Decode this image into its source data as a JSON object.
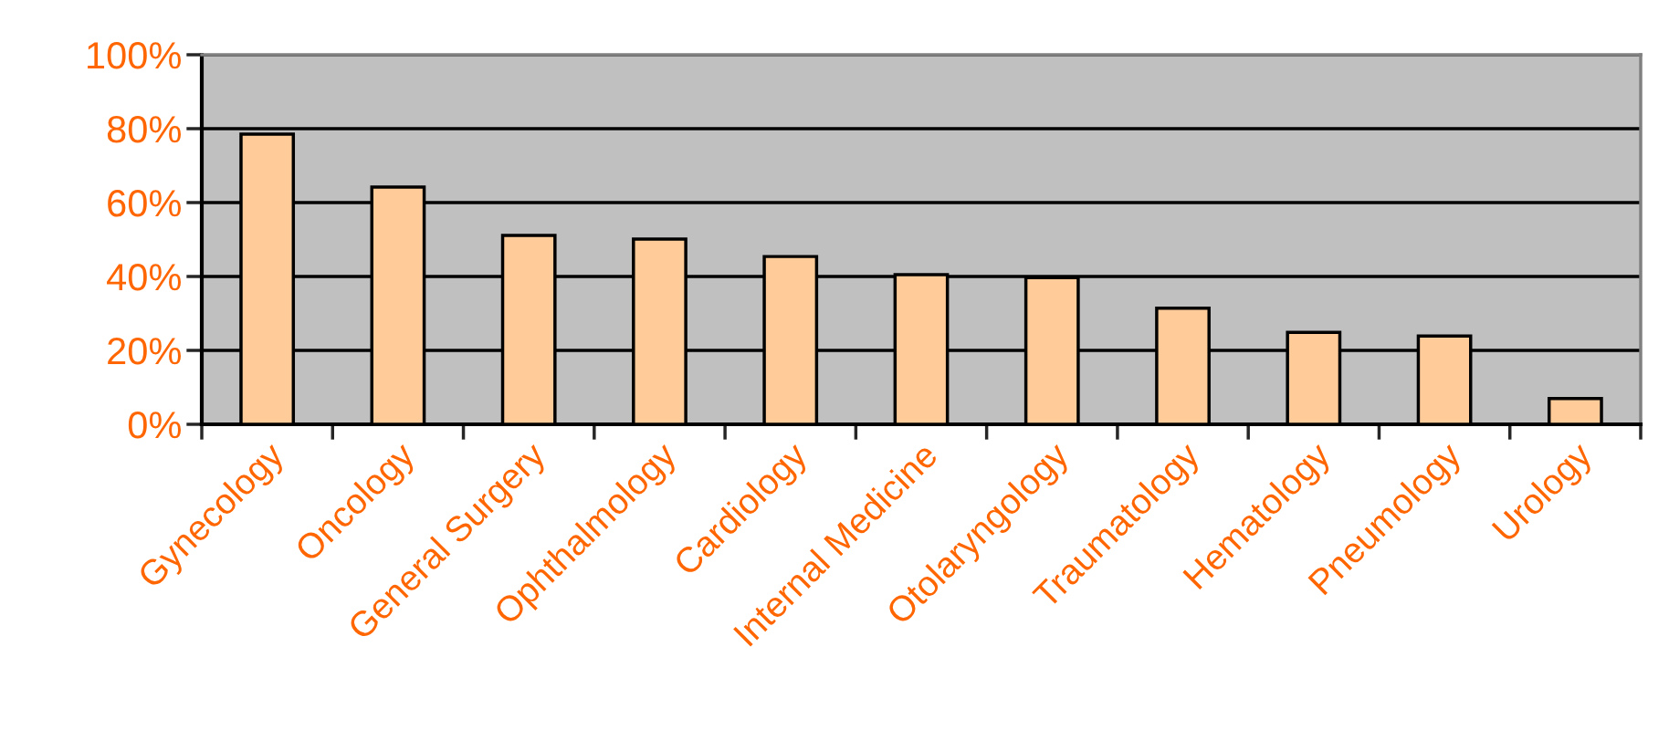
{
  "chart_data": {
    "type": "bar",
    "categories": [
      "Gynecology",
      "Oncology",
      "General Surgery",
      "Ophthalmology",
      "Cardiology",
      "Internal Medicine",
      "Otolaryngology",
      "Traumatology",
      "Hematology",
      "Pneumology",
      "Urology"
    ],
    "values": [
      78.5,
      64.2,
      51.1,
      50.1,
      45.4,
      40.5,
      39.7,
      31.4,
      24.9,
      23.9,
      7.0
    ],
    "color": "#ffcc99",
    "ylim": [
      0,
      100
    ],
    "yticks": [
      {
        "value": 0,
        "label": "0%"
      },
      {
        "value": 20,
        "label": "20%"
      },
      {
        "value": 40,
        "label": "40%"
      },
      {
        "value": 60,
        "label": "60%"
      },
      {
        "value": 80,
        "label": "80%"
      },
      {
        "value": 100,
        "label": "100%"
      }
    ],
    "grid": "y"
  }
}
